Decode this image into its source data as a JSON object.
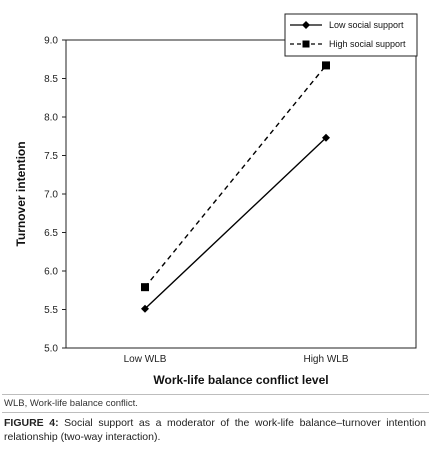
{
  "chart_data": {
    "type": "line",
    "categories": [
      "Low WLB",
      "High WLB"
    ],
    "series": [
      {
        "name": "Low social support",
        "values": [
          5.51,
          7.73
        ],
        "style": "solid",
        "marker": "diamond"
      },
      {
        "name": "High social support",
        "values": [
          5.79,
          8.67
        ],
        "style": "dashed",
        "marker": "square"
      }
    ],
    "ylim": [
      5.0,
      9.0
    ],
    "yticks": [
      "5.0",
      "5.5",
      "6.0",
      "6.5",
      "7.0",
      "7.5",
      "8.0",
      "8.5",
      "9.0"
    ],
    "xlabel": "Work-life balance conflict level",
    "ylabel": "Turnover intention",
    "legend_position": "top-right",
    "grid": false,
    "line_color": "#000000"
  },
  "footnote": "WLB, Work-life balance conflict.",
  "caption": {
    "label": "FIGURE 4:",
    "text": " Social support as a moderator of the work-life balance–turnover intention relationship (two-way interaction)."
  }
}
